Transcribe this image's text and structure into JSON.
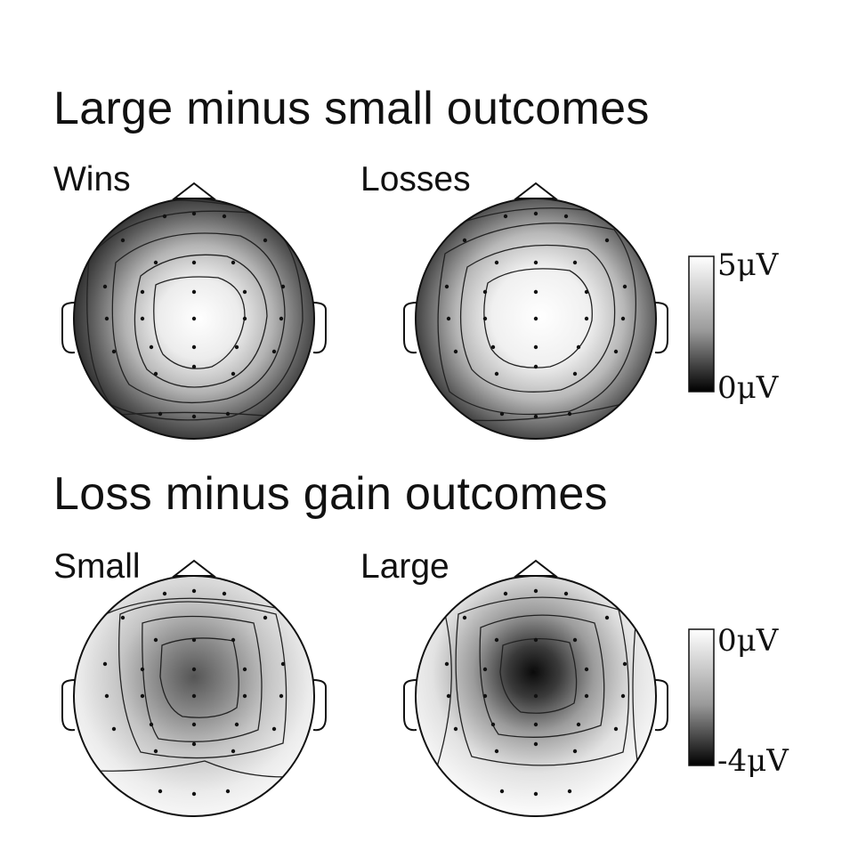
{
  "figure": {
    "top_section": {
      "title": "Large minus small outcomes",
      "panels": [
        {
          "label": "Wins",
          "pattern": "central-positive"
        },
        {
          "label": "Losses",
          "pattern": "central-positive"
        }
      ],
      "colorbar": {
        "max_label": "5μV",
        "min_label": "0μV",
        "max_color": "#ffffff",
        "min_color": "#000000"
      }
    },
    "bottom_section": {
      "title": "Loss minus gain outcomes",
      "panels": [
        {
          "label": "Small",
          "pattern": "frontocentral-negative"
        },
        {
          "label": "Large",
          "pattern": "frontocentral-negative"
        }
      ],
      "colorbar": {
        "max_label": "0μV",
        "min_label": "-4μV",
        "max_color": "#ffffff",
        "min_color": "#000000"
      }
    }
  }
}
